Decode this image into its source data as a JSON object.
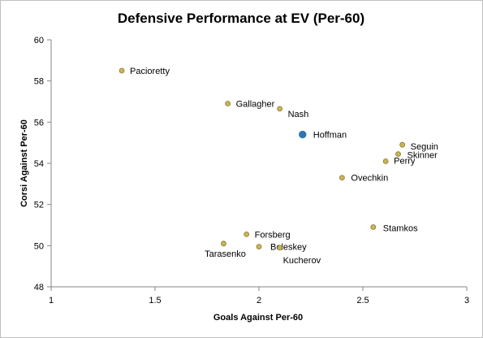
{
  "chart_data": {
    "type": "scatter",
    "title": "Defensive Performance at EV (Per-60)",
    "xlabel": "Goals Against Per-60",
    "ylabel": "Corsi Against Per-60",
    "xlim": [
      1,
      3
    ],
    "ylim": [
      48,
      60
    ],
    "xticks": [
      1,
      1.5,
      2,
      2.5,
      3
    ],
    "xtick_labels": [
      "1",
      "1.5",
      "2",
      "2.5",
      "3"
    ],
    "yticks": [
      48,
      50,
      52,
      54,
      56,
      58,
      60
    ],
    "ytick_labels": [
      "48",
      "50",
      "52",
      "54",
      "56",
      "58",
      "60"
    ],
    "grid": false,
    "legend": "none",
    "colors": {
      "default": "#c8b45a",
      "default_stroke": "#8a7a30",
      "highlight": "#2e75b6"
    },
    "points": [
      {
        "name": "Pacioretty",
        "x": 1.34,
        "y": 58.5,
        "highlight": false
      },
      {
        "name": "Gallagher",
        "x": 1.85,
        "y": 56.9,
        "highlight": false
      },
      {
        "name": "Nash",
        "x": 2.1,
        "y": 56.65,
        "highlight": false
      },
      {
        "name": "Hoffman",
        "x": 2.21,
        "y": 55.4,
        "highlight": true
      },
      {
        "name": "Seguin",
        "x": 2.69,
        "y": 54.9,
        "highlight": false
      },
      {
        "name": "Skinner",
        "x": 2.67,
        "y": 54.45,
        "highlight": false
      },
      {
        "name": "Perry",
        "x": 2.61,
        "y": 54.1,
        "highlight": false
      },
      {
        "name": "Ovechkin",
        "x": 2.4,
        "y": 53.3,
        "highlight": false
      },
      {
        "name": "Stamkos",
        "x": 2.55,
        "y": 50.9,
        "highlight": false
      },
      {
        "name": "Forsberg",
        "x": 1.94,
        "y": 50.55,
        "highlight": false
      },
      {
        "name": "Tarasenko",
        "x": 1.83,
        "y": 50.1,
        "highlight": false
      },
      {
        "name": "Beleskey",
        "x": 2.0,
        "y": 49.95,
        "highlight": false
      },
      {
        "name": "Kucherov",
        "x": 2.1,
        "y": 49.9,
        "highlight": false
      }
    ]
  }
}
